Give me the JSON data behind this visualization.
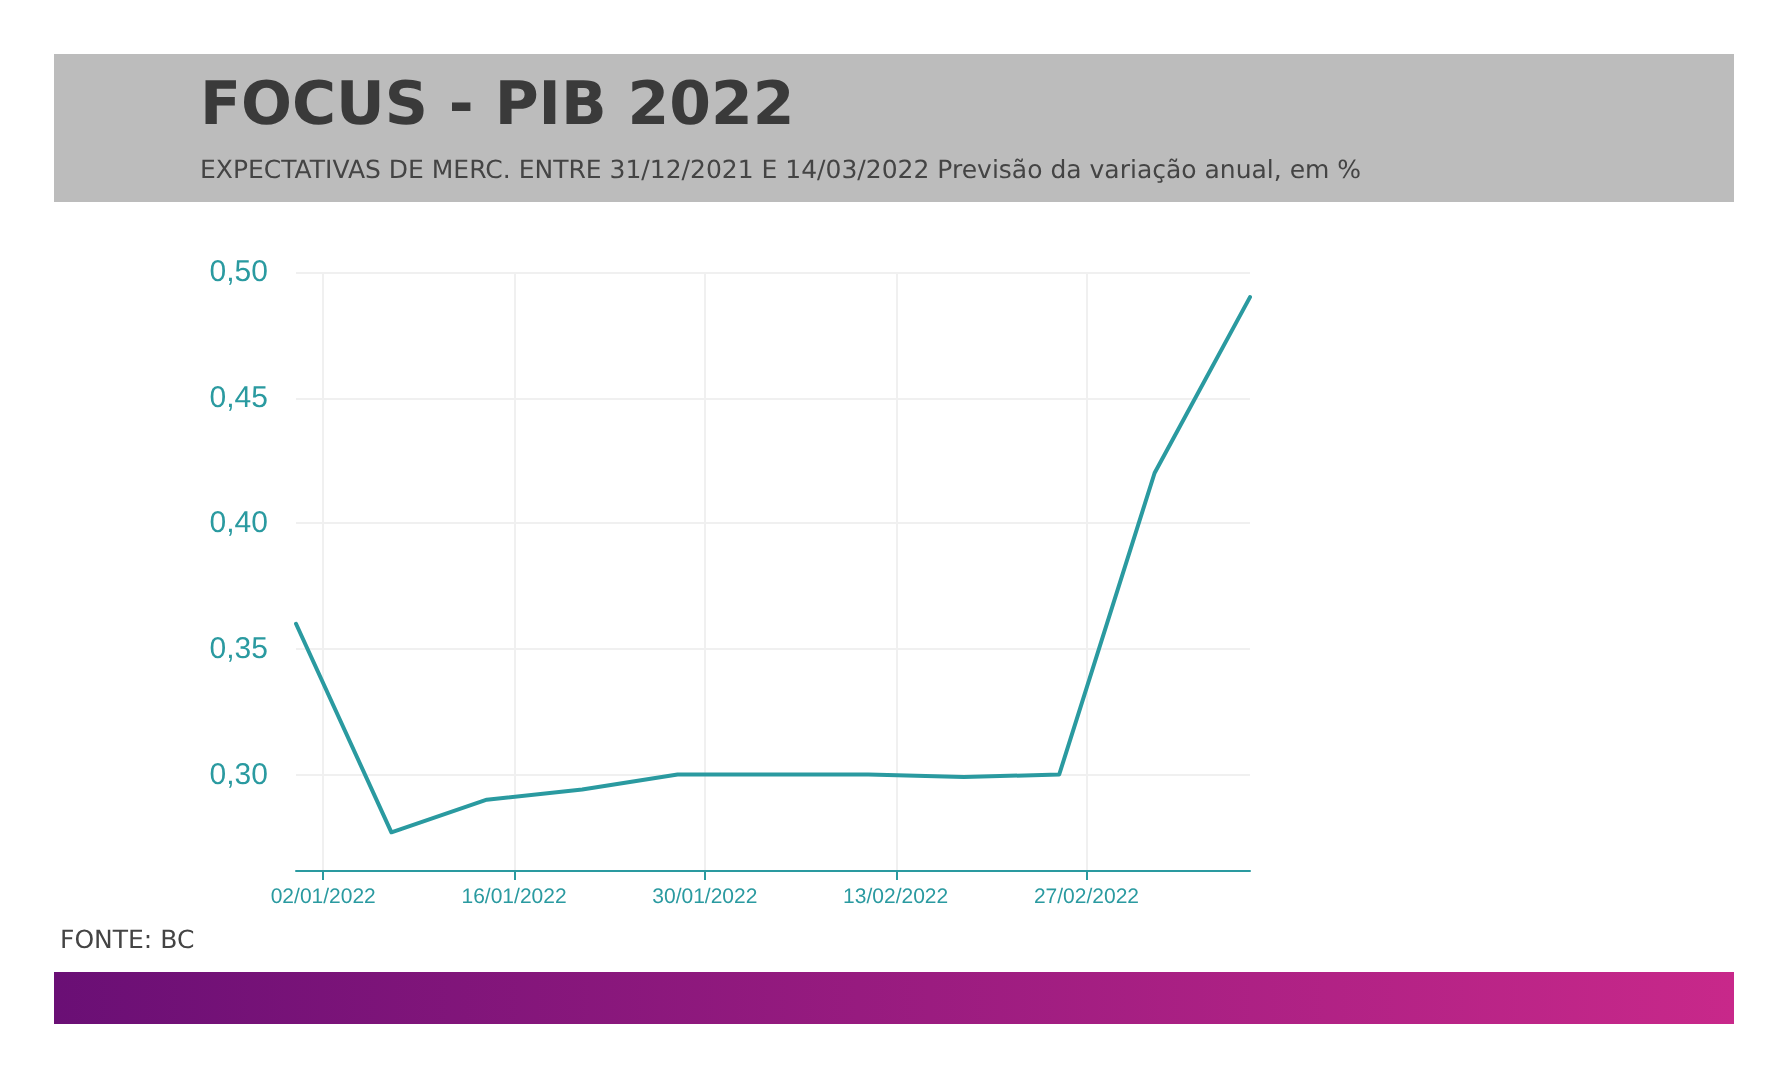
{
  "chart_data": {
    "type": "line",
    "title": "FOCUS - PIB 2022",
    "subtitle": "EXPECTATIVAS DE MERC. ENTRE 31/12/2021 E 14/03/2022 Previsão da variação anual, em %",
    "x": [
      "2021-12-31",
      "2022-01-07",
      "2022-01-14",
      "2022-01-21",
      "2022-01-28",
      "2022-02-04",
      "2022-02-11",
      "2022-02-18",
      "2022-02-25",
      "2022-03-04",
      "2022-03-11"
    ],
    "series": [
      {
        "color": "#2a9aa0",
        "values": [
          0.36,
          0.277,
          0.29,
          0.294,
          0.3,
          0.3,
          0.3,
          0.299,
          0.3,
          0.42,
          0.49
        ]
      }
    ],
    "xlim": [
      "2021-12-31",
      "2022-03-11"
    ],
    "xticks": [
      {
        "value": "2022-01-02",
        "label": "02/01/2022"
      },
      {
        "value": "2022-01-16",
        "label": "16/01/2022"
      },
      {
        "value": "2022-01-30",
        "label": "30/01/2022"
      },
      {
        "value": "2022-02-13",
        "label": "13/02/2022"
      },
      {
        "value": "2022-02-27",
        "label": "27/02/2022"
      }
    ],
    "ylim": [
      0.262,
      0.5
    ],
    "yticks": [
      {
        "value": 0.3,
        "label": "0,30"
      },
      {
        "value": 0.35,
        "label": "0,35"
      },
      {
        "value": 0.4,
        "label": "0,40"
      },
      {
        "value": 0.45,
        "label": "0,45"
      },
      {
        "value": 0.5,
        "label": "0,50"
      }
    ],
    "grid": true,
    "marker": "none",
    "line_style": "solid",
    "annotations": [
      "FONTE: BC"
    ]
  }
}
